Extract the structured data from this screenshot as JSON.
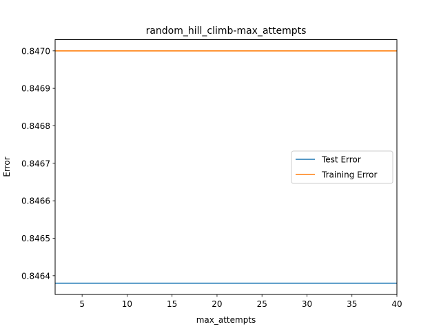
{
  "chart_data": {
    "type": "line",
    "title": "random_hill_climb-max_attempts",
    "xlabel": "max_attempts",
    "ylabel": "Error",
    "xlim": [
      2,
      40
    ],
    "ylim": [
      0.84635,
      0.84703
    ],
    "x_ticks": [
      5,
      10,
      15,
      20,
      25,
      30,
      35,
      40
    ],
    "x_tick_labels": [
      "5",
      "10",
      "15",
      "20",
      "25",
      "30",
      "35",
      "40"
    ],
    "y_ticks": [
      0.8464,
      0.8465,
      0.8466,
      0.8467,
      0.8468,
      0.8469,
      0.847
    ],
    "y_tick_labels": [
      "0.8464",
      "0.8465",
      "0.8466",
      "0.8467",
      "0.8468",
      "0.8469",
      "0.8470"
    ],
    "grid": false,
    "legend_position": "center-right",
    "series": [
      {
        "name": "Test Error",
        "color": "#1f77b4",
        "x": [
          2,
          40
        ],
        "y": [
          0.84638,
          0.84638
        ]
      },
      {
        "name": "Training Error",
        "color": "#ff7f0e",
        "x": [
          2,
          40
        ],
        "y": [
          0.847,
          0.847
        ]
      }
    ]
  }
}
